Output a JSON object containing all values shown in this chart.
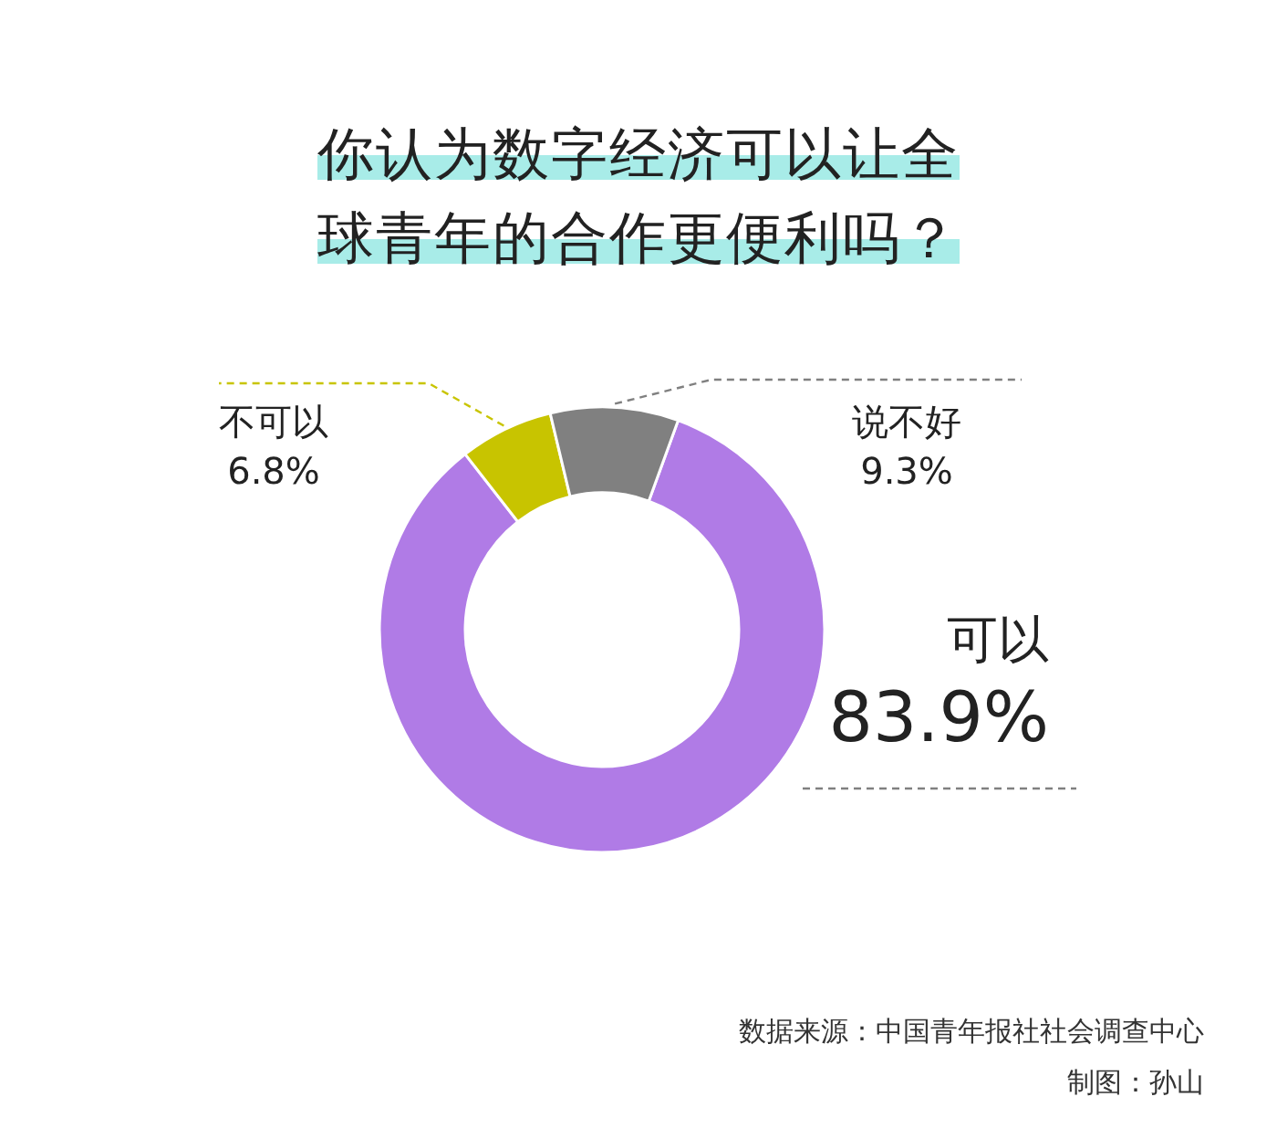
{
  "chart_data": {
    "type": "donut",
    "title": "你认为数字经济可以让全球青年的合作更便利吗？",
    "categories": [
      "可以",
      "不可以",
      "说不好"
    ],
    "values": [
      83.9,
      6.8,
      9.3
    ],
    "value_labels": [
      "83.9%",
      "6.8%",
      "9.3%"
    ],
    "colors": [
      "#b07be6",
      "#c8c400",
      "#808080"
    ],
    "annotations": [
      "数据来源：中国青年报社社会调查中心",
      "制图：孙山"
    ]
  }
}
